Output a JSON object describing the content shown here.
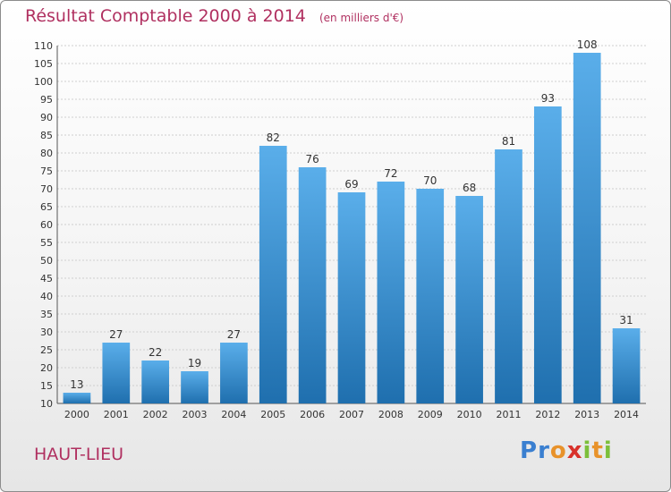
{
  "chart_data": {
    "type": "bar",
    "title": "Résultat Comptable 2000 à 2014",
    "unit": "(en milliers d'€)",
    "categories": [
      "2000",
      "2001",
      "2002",
      "2003",
      "2004",
      "2005",
      "2006",
      "2007",
      "2008",
      "2009",
      "2010",
      "2011",
      "2012",
      "2013",
      "2014"
    ],
    "values": [
      13,
      27,
      22,
      19,
      27,
      82,
      76,
      69,
      72,
      70,
      68,
      81,
      93,
      108,
      31
    ],
    "ylim": [
      10,
      110
    ],
    "ytick_step": 5,
    "grid": true,
    "bar_color_top": "#5aaeea",
    "bar_color_bottom": "#1f6fae"
  },
  "place": "HAUT-LIEU",
  "logo": {
    "text": "Proxiti",
    "colors": [
      "#3a7fd0",
      "#3a7fd0",
      "#e8922a",
      "#d8312a",
      "#7cbf3a",
      "#e8922a",
      "#7cbf3a"
    ]
  }
}
